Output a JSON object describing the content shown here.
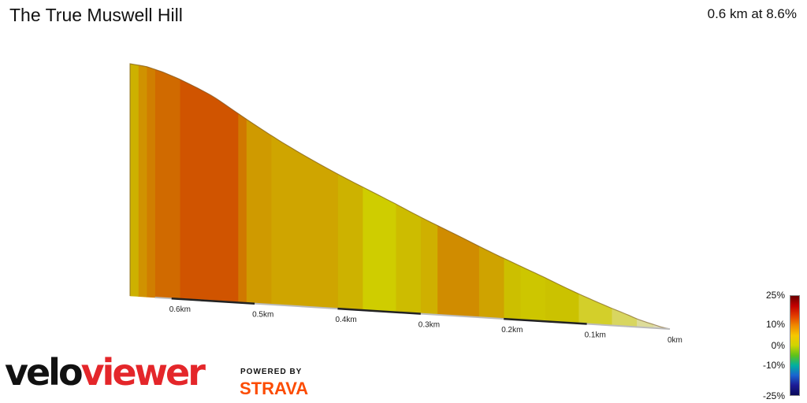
{
  "header": {
    "title": "The True Muswell Hill",
    "summary": "0.6 km at 8.6%"
  },
  "legend": {
    "labels": [
      "25%",
      "10%",
      "0%",
      "-10%",
      "-25%"
    ],
    "gradient": [
      "#6b0000",
      "#c30000",
      "#e23c00",
      "#f08a00",
      "#f5c800",
      "#cfd400",
      "#5ec21a",
      "#00b0a0",
      "#1a64d0",
      "#1c1c96",
      "#0a0a5a"
    ]
  },
  "branding": {
    "logo_part1": "velo",
    "logo_part2": "viewer",
    "powered_by": "POWERED BY",
    "strava": "STRAVA"
  },
  "chart_data": {
    "type": "area",
    "title": "The True Muswell Hill",
    "x_direction": "reversed",
    "x_tick_labels": [
      "0.6km",
      "0.5km",
      "0.4km",
      "0.3km",
      "0.2km",
      "0.1km",
      "0km"
    ],
    "x_ticks_km": [
      0.6,
      0.5,
      0.4,
      0.3,
      0.2,
      0.1,
      0.0
    ],
    "distance_km": 0.6,
    "average_gradient_pct": 8.6,
    "profile_km": [
      0.0,
      0.01,
      0.02,
      0.03,
      0.04,
      0.05,
      0.07,
      0.09,
      0.11,
      0.13,
      0.15,
      0.17,
      0.19,
      0.21,
      0.23,
      0.25,
      0.27,
      0.29,
      0.31,
      0.33,
      0.35,
      0.37,
      0.39,
      0.41,
      0.43,
      0.45,
      0.47,
      0.49,
      0.51,
      0.53,
      0.55,
      0.57,
      0.59,
      0.61,
      0.63,
      0.65
    ],
    "profile_elev_m": [
      0,
      0.4,
      1,
      1.6,
      2.3,
      3.2,
      4.8,
      6.5,
      8.3,
      10.2,
      12.2,
      14.1,
      16.0,
      17.9,
      19.9,
      22.0,
      24.0,
      26.0,
      28.1,
      30.3,
      32.4,
      34.5,
      36.6,
      38.8,
      41.1,
      43.5,
      46.0,
      48.7,
      51.5,
      54.4,
      57.3,
      59.5,
      61.5,
      63.2,
      64.5,
      65.0
    ],
    "segments": [
      {
        "from_km": 0.0,
        "to_km": 0.02,
        "gradient_pct": 3,
        "color": "#e0dcb6"
      },
      {
        "from_km": 0.02,
        "to_km": 0.04,
        "gradient_pct": 4,
        "color": "#dddc9a"
      },
      {
        "from_km": 0.04,
        "to_km": 0.07,
        "gradient_pct": 5,
        "color": "#d8d660"
      },
      {
        "from_km": 0.07,
        "to_km": 0.11,
        "gradient_pct": 8,
        "color": "#d3cf2a"
      },
      {
        "from_km": 0.11,
        "to_km": 0.15,
        "gradient_pct": 9,
        "color": "#cbc200"
      },
      {
        "from_km": 0.15,
        "to_km": 0.18,
        "gradient_pct": 9,
        "color": "#cdc600"
      },
      {
        "from_km": 0.18,
        "to_km": 0.2,
        "gradient_pct": 9,
        "color": "#ccbf00"
      },
      {
        "from_km": 0.2,
        "to_km": 0.23,
        "gradient_pct": 11,
        "color": "#cfa300"
      },
      {
        "from_km": 0.23,
        "to_km": 0.28,
        "gradient_pct": 13,
        "color": "#d08c00"
      },
      {
        "from_km": 0.28,
        "to_km": 0.3,
        "gradient_pct": 10,
        "color": "#cfb000"
      },
      {
        "from_km": 0.3,
        "to_km": 0.33,
        "gradient_pct": 9,
        "color": "#cdbc00"
      },
      {
        "from_km": 0.33,
        "to_km": 0.37,
        "gradient_pct": 8,
        "color": "#cfcd00"
      },
      {
        "from_km": 0.37,
        "to_km": 0.4,
        "gradient_pct": 10,
        "color": "#cdb200"
      },
      {
        "from_km": 0.4,
        "to_km": 0.48,
        "gradient_pct": 11,
        "color": "#cfa500"
      },
      {
        "from_km": 0.48,
        "to_km": 0.51,
        "gradient_pct": 12,
        "color": "#cf9a00"
      },
      {
        "from_km": 0.51,
        "to_km": 0.52,
        "gradient_pct": 14,
        "color": "#d07800"
      },
      {
        "from_km": 0.52,
        "to_km": 0.59,
        "gradient_pct": 17,
        "color": "#d05400"
      },
      {
        "from_km": 0.59,
        "to_km": 0.62,
        "gradient_pct": 15,
        "color": "#d06a00"
      },
      {
        "from_km": 0.62,
        "to_km": 0.63,
        "gradient_pct": 13,
        "color": "#d07e00"
      },
      {
        "from_km": 0.63,
        "to_km": 0.64,
        "gradient_pct": 12,
        "color": "#d09200"
      },
      {
        "from_km": 0.64,
        "to_km": 0.65,
        "gradient_pct": 9,
        "color": "#cdb100"
      }
    ],
    "legend_range_pct": [
      -25,
      25
    ]
  }
}
